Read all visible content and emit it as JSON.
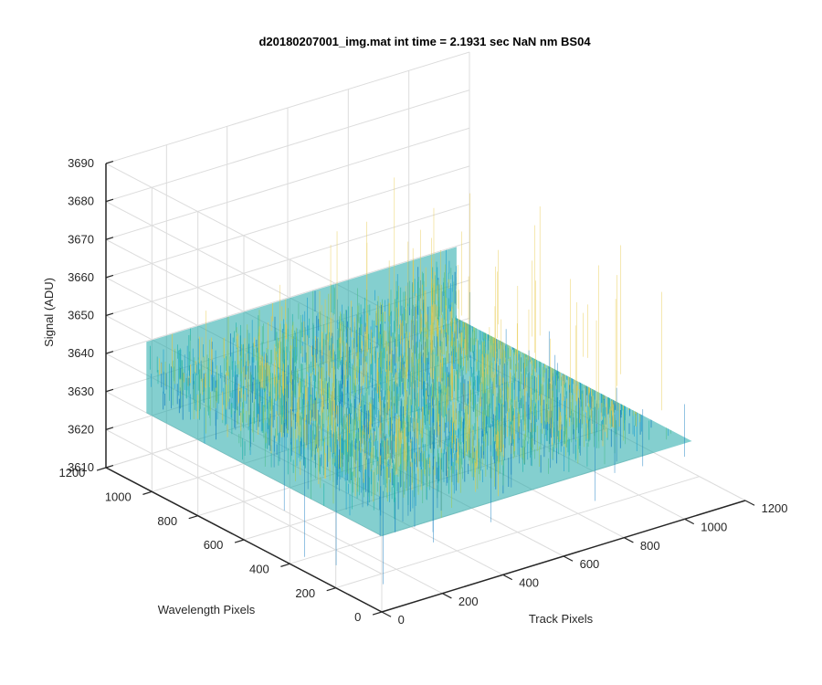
{
  "chart_data": {
    "type": "surface",
    "title": "d20180207001_img.mat int time = 2.1931 sec  NaN nm BS04",
    "xlabel": "Track Pixels",
    "ylabel": "Wavelength Pixels",
    "zlabel": "Signal (ADU)",
    "xlim": [
      0,
      1200
    ],
    "ylim": [
      0,
      1200
    ],
    "zlim": [
      3610,
      3690
    ],
    "x_ticks": [
      0,
      200,
      400,
      600,
      800,
      1000,
      1200
    ],
    "y_ticks": [
      0,
      200,
      400,
      600,
      800,
      1000,
      1200
    ],
    "z_ticks": [
      3610,
      3620,
      3630,
      3640,
      3650,
      3660,
      3670,
      3680,
      3690
    ],
    "x_range": [
      0,
      1024
    ],
    "y_range": [
      0,
      1024
    ],
    "signal_mean": 3640,
    "signal_std": 5,
    "signal_min": 3613,
    "signal_max": 3678,
    "grid": true,
    "colormap": "parula",
    "colors": {
      "low": "#0072BD",
      "mid": "#1FB3A8",
      "high": "#E8C845",
      "axis": "#262626",
      "grid": "#DCDCDC"
    }
  }
}
